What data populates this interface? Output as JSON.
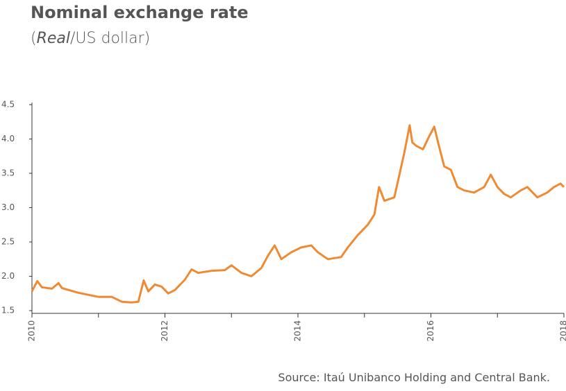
{
  "chart_data": {
    "type": "line",
    "title": "Nominal exchange rate",
    "subtitle_parts": [
      "(",
      "Real",
      "/US dollar)"
    ],
    "source": "Source: Itaú Unibanco Holding and Central Bank.",
    "x": [
      2010.0,
      2010.08,
      2010.15,
      2010.3,
      2010.4,
      2010.45,
      2010.55,
      2010.7,
      2010.8,
      2010.9,
      2011.0,
      2011.2,
      2011.35,
      2011.5,
      2011.6,
      2011.68,
      2011.75,
      2011.85,
      2011.95,
      2012.05,
      2012.15,
      2012.3,
      2012.4,
      2012.5,
      2012.7,
      2012.9,
      2013.0,
      2013.15,
      2013.3,
      2013.45,
      2013.55,
      2013.65,
      2013.75,
      2013.9,
      2014.05,
      2014.2,
      2014.3,
      2014.45,
      2014.65,
      2014.75,
      2014.9,
      2015.05,
      2015.15,
      2015.22,
      2015.3,
      2015.45,
      2015.6,
      2015.68,
      2015.72,
      2015.78,
      2015.88,
      2015.98,
      2016.05,
      2016.12,
      2016.2,
      2016.3,
      2016.4,
      2016.5,
      2016.65,
      2016.8,
      2016.9,
      2017.0,
      2017.1,
      2017.2,
      2017.35,
      2017.45,
      2017.6,
      2017.75,
      2017.85,
      2017.95,
      2018.0
    ],
    "values": [
      1.78,
      1.93,
      1.84,
      1.82,
      1.9,
      1.83,
      1.8,
      1.76,
      1.74,
      1.72,
      1.7,
      1.7,
      1.63,
      1.62,
      1.63,
      1.94,
      1.78,
      1.88,
      1.85,
      1.75,
      1.8,
      1.95,
      2.1,
      2.05,
      2.08,
      2.09,
      2.16,
      2.05,
      2.0,
      2.12,
      2.3,
      2.45,
      2.25,
      2.35,
      2.42,
      2.45,
      2.35,
      2.25,
      2.28,
      2.42,
      2.6,
      2.75,
      2.9,
      3.3,
      3.1,
      3.15,
      3.8,
      4.2,
      3.95,
      3.9,
      3.85,
      4.05,
      4.18,
      3.9,
      3.6,
      3.55,
      3.3,
      3.25,
      3.22,
      3.3,
      3.48,
      3.3,
      3.2,
      3.15,
      3.25,
      3.3,
      3.15,
      3.22,
      3.3,
      3.35,
      3.3
    ],
    "color": "#f08a32",
    "xlim": [
      2010,
      2018
    ],
    "xticks": [
      2010,
      2012,
      2014,
      2016,
      2018
    ],
    "xminor_ticks": [
      2011,
      2013,
      2015,
      2017
    ],
    "ylim": [
      1.46,
      4.53
    ],
    "yticks": [
      1.5,
      {
        "value": 2,
        "label": "2.0"
      },
      2.5,
      {
        "value": 3,
        "label": "3.0"
      },
      3.5,
      {
        "value": 4,
        "label": "4.0"
      },
      4.5
    ],
    "grid": false
  }
}
